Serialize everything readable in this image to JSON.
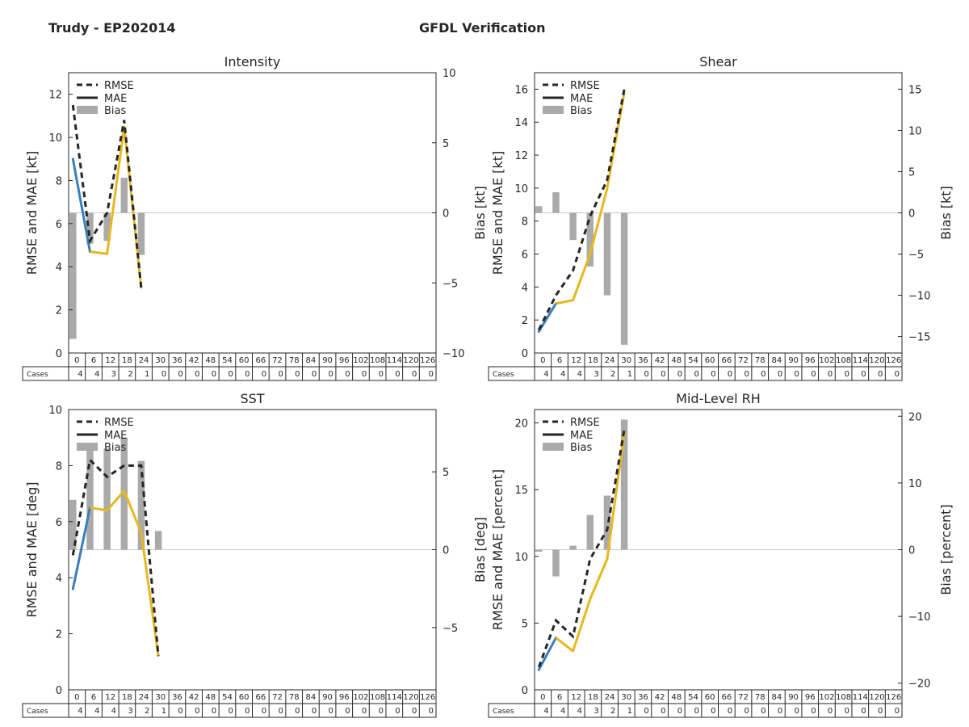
{
  "header": {
    "storm": "Trudy - EP202014",
    "product": "GFDL Verification"
  },
  "legend": {
    "rmse": "RMSE",
    "mae": "MAE",
    "bias": "Bias"
  },
  "cases_label": "Cases",
  "colors": {
    "rmse": "#262626",
    "mae_early": "#3a7fba",
    "mae_late": "#e6b820",
    "bias": "#aaaaaa",
    "zero_line": "#c8c8c8",
    "axes": "#262626"
  },
  "chart_data": [
    {
      "type": "line",
      "title": "Intensity",
      "ylabel": "RMSE and MAE [kt]",
      "y2label": "Bias [kt]",
      "ylim": [
        0,
        13
      ],
      "yticks": [
        0,
        2,
        4,
        6,
        8,
        10,
        12
      ],
      "y2lim": [
        -10,
        10
      ],
      "y2ticks": [
        -10,
        -5,
        0,
        5,
        10
      ],
      "x": [
        0,
        6,
        12,
        18,
        24,
        30,
        36,
        42,
        48,
        54,
        60,
        66,
        72,
        78,
        84,
        90,
        96,
        102,
        108,
        114,
        120,
        126
      ],
      "cases": [
        4,
        4,
        3,
        2,
        1,
        0,
        0,
        0,
        0,
        0,
        0,
        0,
        0,
        0,
        0,
        0,
        0,
        0,
        0,
        0,
        0,
        0
      ],
      "rmse": [
        11.5,
        5.2,
        6.5,
        10.8,
        3.0
      ],
      "mae": [
        9.0,
        4.7,
        4.6,
        10.5,
        3.0
      ],
      "bias": [
        -9.0,
        -2.2,
        -2.0,
        2.5,
        -3.0
      ],
      "xlim": [
        -1.5,
        127.5
      ]
    },
    {
      "type": "line",
      "title": "Shear",
      "ylabel": "RMSE and MAE [kt]",
      "y2label": "Bias [kt]",
      "ylim": [
        0,
        17
      ],
      "yticks": [
        0,
        2,
        4,
        6,
        8,
        10,
        12,
        14,
        16
      ],
      "y2lim": [
        -17,
        17
      ],
      "y2ticks": [
        -15,
        -10,
        -5,
        0,
        5,
        10,
        15
      ],
      "x": [
        0,
        6,
        12,
        18,
        24,
        30,
        36,
        42,
        48,
        54,
        60,
        66,
        72,
        78,
        84,
        90,
        96,
        102,
        108,
        114,
        120,
        126
      ],
      "cases": [
        4,
        4,
        4,
        3,
        2,
        1,
        0,
        0,
        0,
        0,
        0,
        0,
        0,
        0,
        0,
        0,
        0,
        0,
        0,
        0,
        0,
        0
      ],
      "rmse": [
        1.4,
        3.5,
        5.0,
        8.3,
        10.5,
        16.0
      ],
      "mae": [
        1.3,
        3.0,
        3.2,
        6.0,
        10.0,
        15.8
      ],
      "bias": [
        0.8,
        2.5,
        -3.3,
        -6.5,
        -10.0,
        -16.0
      ],
      "xlim": [
        -1.5,
        127.5
      ]
    },
    {
      "type": "line",
      "title": "SST",
      "ylabel": "RMSE and MAE [deg]",
      "y2label": "Bias [deg]",
      "ylim": [
        0,
        10
      ],
      "yticks": [
        0,
        2,
        4,
        6,
        8,
        10
      ],
      "y2lim": [
        -9,
        9
      ],
      "y2ticks": [
        -5,
        0,
        5
      ],
      "x": [
        0,
        6,
        12,
        18,
        24,
        30,
        36,
        42,
        48,
        54,
        60,
        66,
        72,
        78,
        84,
        90,
        96,
        102,
        108,
        114,
        120,
        126
      ],
      "cases": [
        4,
        4,
        4,
        3,
        2,
        1,
        0,
        0,
        0,
        0,
        0,
        0,
        0,
        0,
        0,
        0,
        0,
        0,
        0,
        0,
        0,
        0
      ],
      "rmse": [
        4.8,
        8.2,
        7.6,
        8.0,
        8.0,
        1.2
      ],
      "mae": [
        3.6,
        6.5,
        6.4,
        7.1,
        5.6,
        1.2
      ],
      "bias": [
        3.2,
        6.5,
        6.5,
        7.2,
        5.7,
        1.2
      ],
      "xlim": [
        -1.5,
        127.5
      ]
    },
    {
      "type": "line",
      "title": "Mid-Level RH",
      "ylabel": "RMSE and MAE [percent]",
      "y2label": "Bias [percent]",
      "ylim": [
        0,
        21
      ],
      "yticks": [
        0,
        5,
        10,
        15,
        20
      ],
      "y2lim": [
        -21,
        21
      ],
      "y2ticks": [
        -20,
        -10,
        0,
        10,
        20
      ],
      "x": [
        0,
        6,
        12,
        18,
        24,
        30,
        36,
        42,
        48,
        54,
        60,
        66,
        72,
        78,
        84,
        90,
        96,
        102,
        108,
        114,
        120,
        126
      ],
      "cases": [
        4,
        4,
        4,
        3,
        2,
        1,
        0,
        0,
        0,
        0,
        0,
        0,
        0,
        0,
        0,
        0,
        0,
        0,
        0,
        0,
        0,
        0
      ],
      "rmse": [
        1.7,
        5.2,
        4.0,
        9.8,
        12.0,
        19.5
      ],
      "mae": [
        1.5,
        3.9,
        2.9,
        6.8,
        9.8,
        19.3
      ],
      "bias": [
        -0.3,
        -4.0,
        0.6,
        5.2,
        8.1,
        19.5
      ],
      "xlim": [
        -1.5,
        127.5
      ]
    }
  ]
}
